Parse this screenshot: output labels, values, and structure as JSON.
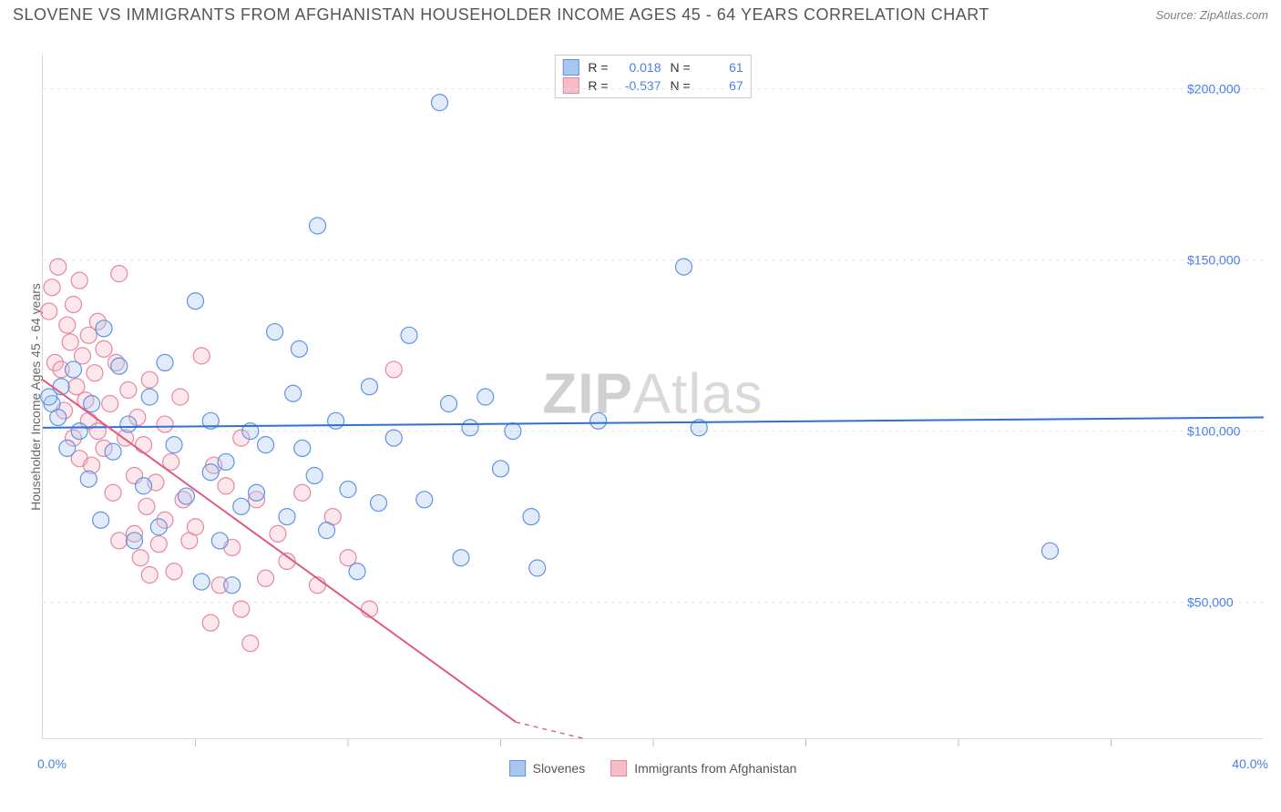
{
  "title": "SLOVENE VS IMMIGRANTS FROM AFGHANISTAN HOUSEHOLDER INCOME AGES 45 - 64 YEARS CORRELATION CHART",
  "source_label": "Source: ZipAtlas.com",
  "watermark_main": "ZIP",
  "watermark_sub": "Atlas",
  "ylabel": "Householder Income Ages 45 - 64 years",
  "series_a": {
    "label": "Slovenes",
    "r": "0.018",
    "n": "61",
    "fill": "#a9c6f0",
    "stroke": "#5f94e3",
    "line": "#2f6fd6"
  },
  "series_b": {
    "label": "Immigrants from Afghanistan",
    "r": "-0.537",
    "n": "67",
    "fill": "#f6bcc8",
    "stroke": "#e886a0",
    "line": "#e05a7d"
  },
  "legend_r_prefix": "R =",
  "legend_n_prefix": "N =",
  "xlim": [
    0,
    40
  ],
  "xmin_label": "0.0%",
  "xmax_label": "40.0%",
  "ylim": [
    10000,
    210000
  ],
  "yticks": [
    50000,
    100000,
    150000,
    200000
  ],
  "ytick_labels": [
    "$50,000",
    "$100,000",
    "$150,000",
    "$200,000"
  ],
  "xticks": [
    0,
    5,
    10,
    15,
    20,
    25,
    30,
    35,
    40
  ],
  "point_radius": 9,
  "background": "#ffffff",
  "grid_color": "#e2e2e2",
  "value_color": "#4a7ee8",
  "line_a": {
    "x1": 0,
    "y1": 101000,
    "x2": 40,
    "y2": 104000
  },
  "line_b_solid": {
    "x1": 0,
    "y1": 115000,
    "x2": 15.5,
    "y2": 15000
  },
  "line_b_dash": {
    "x1": 15.5,
    "y1": 15000,
    "x2": 17.8,
    "y2": 10000
  },
  "points_a": [
    [
      0.3,
      108000
    ],
    [
      0.5,
      104000
    ],
    [
      0.6,
      113000
    ],
    [
      0.8,
      95000
    ],
    [
      1.0,
      118000
    ],
    [
      1.2,
      100000
    ],
    [
      1.5,
      86000
    ],
    [
      1.6,
      108000
    ],
    [
      1.9,
      74000
    ],
    [
      2.0,
      130000
    ],
    [
      2.3,
      94000
    ],
    [
      2.5,
      119000
    ],
    [
      2.8,
      102000
    ],
    [
      3.0,
      68000
    ],
    [
      3.3,
      84000
    ],
    [
      3.5,
      110000
    ],
    [
      3.8,
      72000
    ],
    [
      4.0,
      120000
    ],
    [
      4.3,
      96000
    ],
    [
      4.7,
      81000
    ],
    [
      5.0,
      138000
    ],
    [
      5.2,
      56000
    ],
    [
      5.5,
      103000
    ],
    [
      5.5,
      88000
    ],
    [
      5.8,
      68000
    ],
    [
      6.0,
      91000
    ],
    [
      6.2,
      55000
    ],
    [
      6.5,
      78000
    ],
    [
      6.8,
      100000
    ],
    [
      7.0,
      82000
    ],
    [
      7.3,
      96000
    ],
    [
      7.6,
      129000
    ],
    [
      8.0,
      75000
    ],
    [
      8.2,
      111000
    ],
    [
      8.4,
      124000
    ],
    [
      8.5,
      95000
    ],
    [
      8.9,
      87000
    ],
    [
      9.0,
      160000
    ],
    [
      9.3,
      71000
    ],
    [
      9.6,
      103000
    ],
    [
      10.0,
      83000
    ],
    [
      10.3,
      59000
    ],
    [
      10.7,
      113000
    ],
    [
      11.0,
      79000
    ],
    [
      11.5,
      98000
    ],
    [
      12.0,
      128000
    ],
    [
      12.5,
      80000
    ],
    [
      13.0,
      196000
    ],
    [
      13.3,
      108000
    ],
    [
      13.7,
      63000
    ],
    [
      14.0,
      101000
    ],
    [
      14.5,
      110000
    ],
    [
      15.0,
      89000
    ],
    [
      15.4,
      100000
    ],
    [
      16.0,
      75000
    ],
    [
      16.2,
      60000
    ],
    [
      18.2,
      103000
    ],
    [
      21.0,
      148000
    ],
    [
      21.5,
      101000
    ],
    [
      33.0,
      65000
    ],
    [
      0.2,
      110000
    ]
  ],
  "points_b": [
    [
      0.2,
      135000
    ],
    [
      0.3,
      142000
    ],
    [
      0.4,
      120000
    ],
    [
      0.5,
      148000
    ],
    [
      0.6,
      118000
    ],
    [
      0.7,
      106000
    ],
    [
      0.8,
      131000
    ],
    [
      0.9,
      126000
    ],
    [
      1.0,
      137000
    ],
    [
      1.0,
      98000
    ],
    [
      1.1,
      113000
    ],
    [
      1.2,
      144000
    ],
    [
      1.2,
      92000
    ],
    [
      1.3,
      122000
    ],
    [
      1.4,
      109000
    ],
    [
      1.5,
      103000
    ],
    [
      1.5,
      128000
    ],
    [
      1.6,
      90000
    ],
    [
      1.7,
      117000
    ],
    [
      1.8,
      100000
    ],
    [
      1.8,
      132000
    ],
    [
      2.0,
      95000
    ],
    [
      2.0,
      124000
    ],
    [
      2.2,
      108000
    ],
    [
      2.3,
      82000
    ],
    [
      2.4,
      120000
    ],
    [
      2.5,
      68000
    ],
    [
      2.5,
      146000
    ],
    [
      2.7,
      98000
    ],
    [
      2.8,
      112000
    ],
    [
      3.0,
      87000
    ],
    [
      3.0,
      70000
    ],
    [
      3.1,
      104000
    ],
    [
      3.2,
      63000
    ],
    [
      3.3,
      96000
    ],
    [
      3.4,
      78000
    ],
    [
      3.5,
      58000
    ],
    [
      3.5,
      115000
    ],
    [
      3.7,
      85000
    ],
    [
      3.8,
      67000
    ],
    [
      4.0,
      102000
    ],
    [
      4.0,
      74000
    ],
    [
      4.2,
      91000
    ],
    [
      4.3,
      59000
    ],
    [
      4.5,
      110000
    ],
    [
      4.6,
      80000
    ],
    [
      4.8,
      68000
    ],
    [
      5.0,
      72000
    ],
    [
      5.2,
      122000
    ],
    [
      5.5,
      44000
    ],
    [
      5.6,
      90000
    ],
    [
      5.8,
      55000
    ],
    [
      6.0,
      84000
    ],
    [
      6.2,
      66000
    ],
    [
      6.5,
      48000
    ],
    [
      6.5,
      98000
    ],
    [
      6.8,
      38000
    ],
    [
      7.0,
      80000
    ],
    [
      7.3,
      57000
    ],
    [
      7.7,
      70000
    ],
    [
      8.0,
      62000
    ],
    [
      8.5,
      82000
    ],
    [
      9.0,
      55000
    ],
    [
      9.5,
      75000
    ],
    [
      10.0,
      63000
    ],
    [
      10.7,
      48000
    ],
    [
      11.5,
      118000
    ]
  ]
}
